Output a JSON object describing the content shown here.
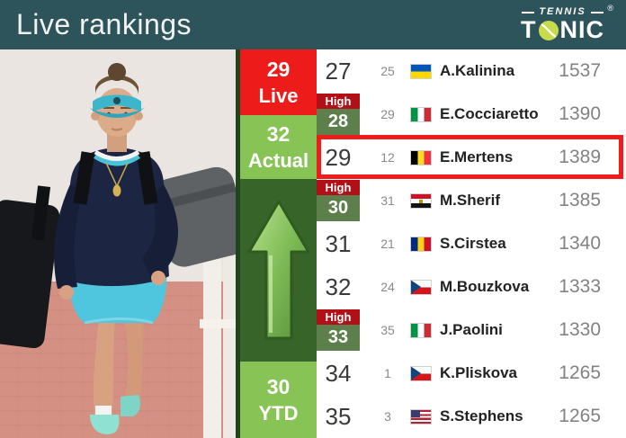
{
  "header": {
    "title": "Live rankings",
    "logo": {
      "line1": "TENNIS",
      "line2_t": "T",
      "line2_rest": "NIC",
      "registered": "®",
      "ball_icon": "tennis-ball-icon"
    }
  },
  "photo": {
    "description_icon": "player-photo"
  },
  "sidebar": {
    "live": {
      "value": "29",
      "label": "Live"
    },
    "actual": {
      "value": "32",
      "label": "Actual"
    },
    "trend_icon": "up-arrow-icon",
    "ytd": {
      "value": "30",
      "label": "YTD"
    }
  },
  "table": {
    "high_label": "High",
    "rows": [
      {
        "rank": "27",
        "prev": "25",
        "country": "ukraine",
        "name": "A.Kalinina",
        "points": "1537",
        "career_high": false,
        "highlighted": false
      },
      {
        "rank": "28",
        "prev": "29",
        "country": "italy",
        "name": "E.Cocciaretto",
        "points": "1390",
        "career_high": true,
        "highlighted": false
      },
      {
        "rank": "29",
        "prev": "12",
        "country": "belgium",
        "name": "E.Mertens",
        "points": "1389",
        "career_high": false,
        "highlighted": true
      },
      {
        "rank": "30",
        "prev": "31",
        "country": "egypt",
        "name": "M.Sherif",
        "points": "1385",
        "career_high": true,
        "highlighted": false
      },
      {
        "rank": "31",
        "prev": "21",
        "country": "romania",
        "name": "S.Cirstea",
        "points": "1340",
        "career_high": false,
        "highlighted": false
      },
      {
        "rank": "32",
        "prev": "24",
        "country": "czech",
        "name": "M.Bouzkova",
        "points": "1333",
        "career_high": false,
        "highlighted": false
      },
      {
        "rank": "33",
        "prev": "35",
        "country": "italy",
        "name": "J.Paolini",
        "points": "1330",
        "career_high": true,
        "highlighted": false
      },
      {
        "rank": "34",
        "prev": "1",
        "country": "czech",
        "name": "K.Pliskova",
        "points": "1265",
        "career_high": false,
        "highlighted": false
      },
      {
        "rank": "35",
        "prev": "3",
        "country": "usa",
        "name": "S.Stephens",
        "points": "1265",
        "career_high": false,
        "highlighted": false
      }
    ]
  },
  "colors": {
    "header_teal": "#2D545B",
    "live_red": "#EE1B1B",
    "light_green": "#87C355",
    "dark_green": "#376428",
    "career_high_red": "#B11116",
    "career_high_green": "#5C7F4B",
    "highlight_border_red": "#F01C1C",
    "logo_ball_green": "#C9DB4D"
  }
}
